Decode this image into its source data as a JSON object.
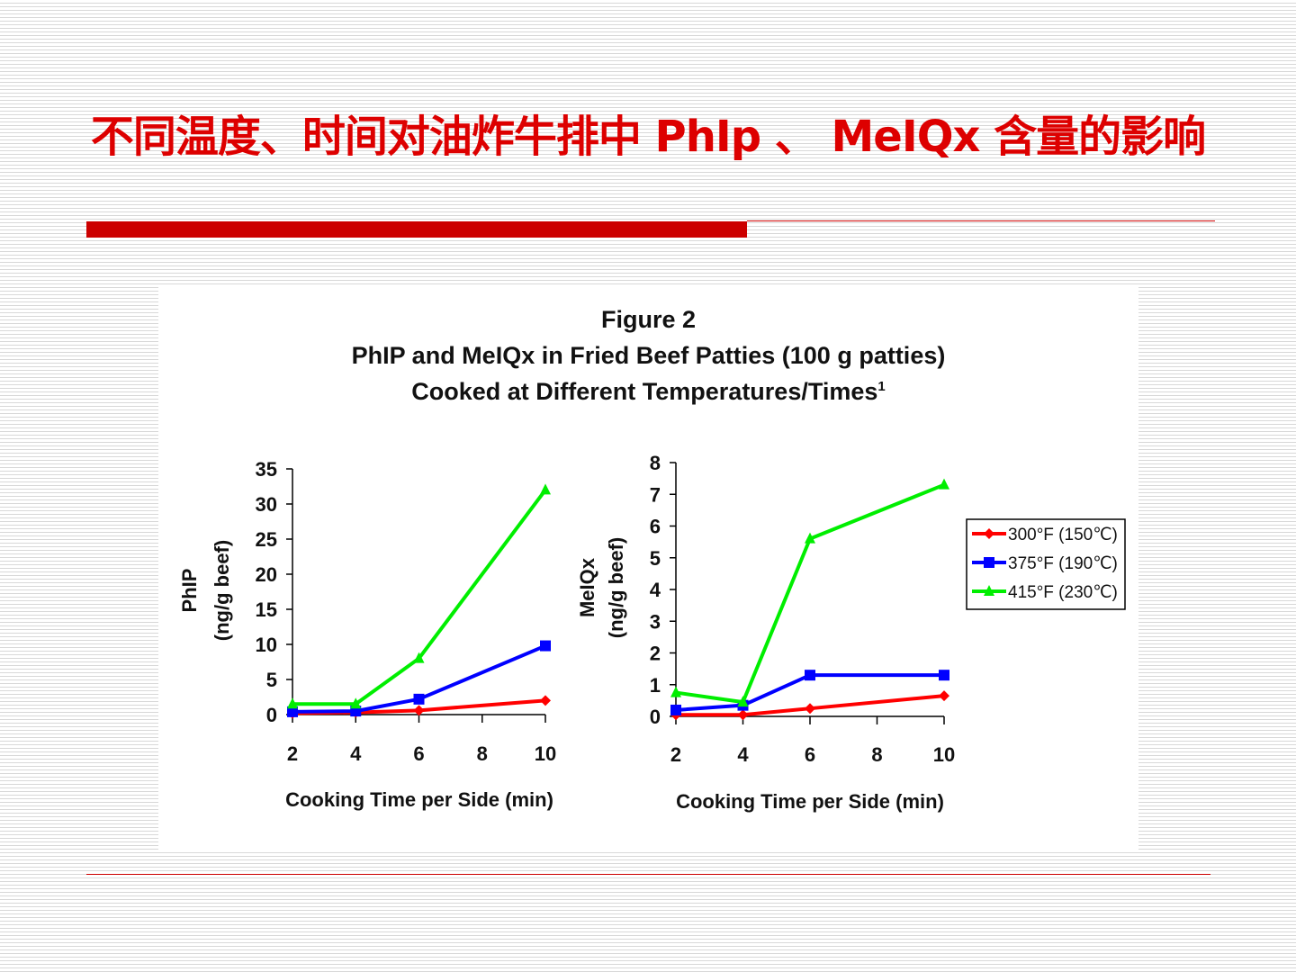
{
  "slide": {
    "title": "不同温度、时间对油炸牛排中 PhIp 、 MeIQx 含量的影响",
    "colors": {
      "accent": "#cc0000",
      "title": "#dd0000"
    }
  },
  "figure": {
    "title": "Figure 2",
    "subtitle": "PhIP and MeIQx in Fried Beef Patties (100 g patties)",
    "subtitle2": "Cooked at Different Temperatures/Times",
    "footnote_mark": "1"
  },
  "legend": {
    "items": [
      {
        "label": "300°F (150℃)",
        "color": "#ff0000",
        "marker": "diamond"
      },
      {
        "label": "375°F (190℃)",
        "color": "#0000ff",
        "marker": "square"
      },
      {
        "label": "415°F (230℃)",
        "color": "#00ee00",
        "marker": "triangle"
      }
    ]
  },
  "chart_data": [
    {
      "type": "line",
      "xlabel": "Cooking Time per Side (min)",
      "ylabel": [
        "PhIP",
        "(ng/g beef)"
      ],
      "x": [
        2,
        4,
        6,
        10
      ],
      "xticks": [
        2,
        4,
        6,
        8,
        10
      ],
      "xlim": [
        2,
        10
      ],
      "ylim": [
        0,
        35
      ],
      "yticks": [
        0,
        5,
        10,
        15,
        20,
        25,
        30,
        35
      ],
      "series": [
        {
          "name": "300°F (150℃)",
          "color": "#ff0000",
          "values": [
            0.2,
            0.3,
            0.6,
            2.0
          ]
        },
        {
          "name": "375°F (190℃)",
          "color": "#0000ff",
          "values": [
            0.4,
            0.5,
            2.2,
            9.8
          ]
        },
        {
          "name": "415°F (230℃)",
          "color": "#00ee00",
          "values": [
            1.5,
            1.5,
            8.0,
            32.0
          ]
        }
      ]
    },
    {
      "type": "line",
      "xlabel": "Cooking Time per Side (min)",
      "ylabel": [
        "MeIQx",
        "(ng/g beef)"
      ],
      "x": [
        2,
        4,
        6,
        10
      ],
      "xticks": [
        2,
        4,
        6,
        8,
        10
      ],
      "xlim": [
        2,
        10
      ],
      "ylim": [
        0,
        8
      ],
      "yticks": [
        0,
        1,
        2,
        3,
        4,
        5,
        6,
        7,
        8
      ],
      "series": [
        {
          "name": "300°F (150℃)",
          "color": "#ff0000",
          "values": [
            0.05,
            0.05,
            0.25,
            0.65
          ]
        },
        {
          "name": "375°F (190℃)",
          "color": "#0000ff",
          "values": [
            0.2,
            0.35,
            1.3,
            1.3
          ]
        },
        {
          "name": "415°F (230℃)",
          "color": "#00ee00",
          "values": [
            0.75,
            0.45,
            5.6,
            7.3
          ]
        }
      ]
    }
  ]
}
